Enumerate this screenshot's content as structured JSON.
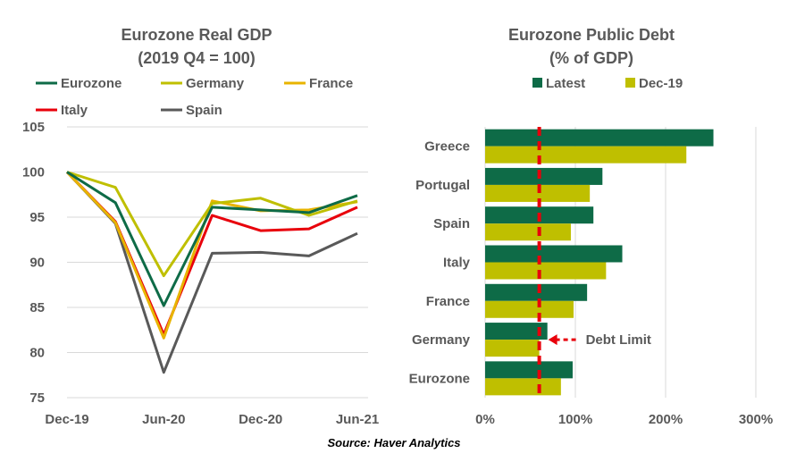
{
  "source": "Source: Haver Analytics",
  "chart_data": [
    {
      "type": "line",
      "title": "Eurozone Real GDP",
      "subtitle": "(2019 Q4 = 100)",
      "x": [
        "Dec-19",
        "Mar-20",
        "Jun-20",
        "Sep-20",
        "Dec-20",
        "Mar-21",
        "Jun-21"
      ],
      "x_tick_labels": [
        "Dec-19",
        "Jun-20",
        "Dec-20",
        "Jun-21"
      ],
      "ylim": [
        75,
        105
      ],
      "y_ticks": [
        75,
        80,
        85,
        90,
        95,
        100,
        105
      ],
      "grid": true,
      "legend_position": "top",
      "series": [
        {
          "name": "Eurozone",
          "color": "#0E6B47",
          "values": [
            100,
            96.6,
            85.2,
            96.1,
            95.8,
            95.5,
            97.4
          ]
        },
        {
          "name": "Germany",
          "color": "#BFBF00",
          "values": [
            100,
            98.3,
            88.5,
            96.5,
            97.1,
            95.2,
            96.8
          ]
        },
        {
          "name": "France",
          "color": "#E8B400",
          "values": [
            100,
            94.4,
            81.6,
            96.8,
            95.7,
            95.8,
            96.7
          ]
        },
        {
          "name": "Italy",
          "color": "#E8000B",
          "values": [
            100,
            94.5,
            82.0,
            95.2,
            93.5,
            93.7,
            96.1
          ]
        },
        {
          "name": "Spain",
          "color": "#595959",
          "values": [
            100,
            94.3,
            77.8,
            91.0,
            91.1,
            90.7,
            93.2
          ]
        }
      ]
    },
    {
      "type": "bar",
      "orientation": "horizontal",
      "title": "Eurozone Public Debt",
      "subtitle": "(% of GDP)",
      "categories": [
        "Greece",
        "Portugal",
        "Spain",
        "Italy",
        "France",
        "Germany",
        "Eurozone"
      ],
      "xlim": [
        0,
        300
      ],
      "x_tick_labels": [
        "0%",
        "100%",
        "200%",
        "300%"
      ],
      "grid": true,
      "legend_position": "top",
      "series": [
        {
          "name": "Latest",
          "color": "#0E6B47",
          "values": [
            253,
            130,
            120,
            152,
            113,
            69,
            97
          ]
        },
        {
          "name": "Dec-19",
          "color": "#BFBF00",
          "values": [
            223,
            116,
            95,
            134,
            98,
            60,
            84
          ]
        }
      ],
      "reference_line": {
        "value": 60,
        "label": "Debt Limit",
        "color": "#E8000B"
      }
    }
  ]
}
